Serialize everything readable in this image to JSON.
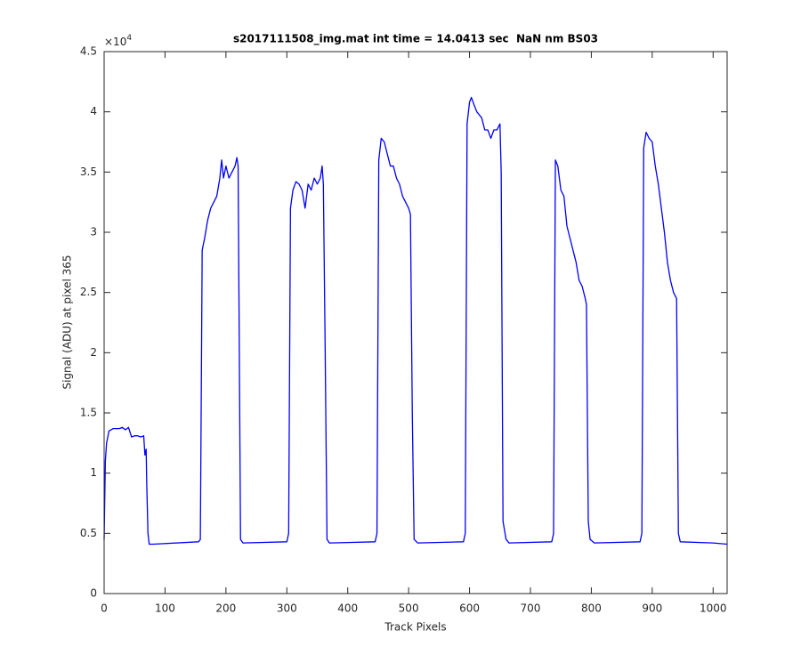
{
  "chart_data": {
    "type": "line",
    "title": "s2017111508_img.mat int time = 14.0413 sec  NaN nm BS03",
    "x_label": "Track Pixels",
    "y_label": "Signal (ADU) at pixel 365",
    "y_multiplier_base": "×10",
    "y_multiplier_exponent": "4",
    "color": "#0000ff",
    "xlim": [
      0,
      1023
    ],
    "xticks": [
      0,
      100,
      200,
      300,
      400,
      500,
      600,
      700,
      800,
      900,
      1000
    ],
    "ylim": [
      0,
      4.5
    ],
    "yticks": [
      0,
      0.5,
      1,
      1.5,
      2,
      2.5,
      3,
      3.5,
      4,
      4.5
    ],
    "x": [
      0,
      2,
      4,
      8,
      15,
      25,
      30,
      35,
      40,
      45,
      50,
      55,
      60,
      65,
      67,
      69,
      70,
      72,
      74,
      80,
      155,
      158,
      161,
      165,
      170,
      175,
      180,
      185,
      190,
      193,
      196,
      200,
      205,
      210,
      215,
      218,
      220,
      222,
      224,
      228,
      300,
      303,
      306,
      310,
      315,
      320,
      325,
      330,
      335,
      340,
      345,
      350,
      355,
      358,
      360,
      363,
      366,
      370,
      445,
      448,
      451,
      455,
      460,
      465,
      470,
      475,
      480,
      485,
      490,
      495,
      500,
      503,
      506,
      509,
      515,
      590,
      593,
      596,
      600,
      603,
      608,
      612,
      620,
      625,
      630,
      635,
      640,
      645,
      650,
      652,
      655,
      660,
      665,
      735,
      738,
      741,
      745,
      750,
      755,
      760,
      765,
      770,
      775,
      780,
      785,
      790,
      792,
      795,
      798,
      805,
      880,
      883,
      886,
      890,
      895,
      900,
      905,
      910,
      915,
      920,
      925,
      930,
      935,
      940,
      943,
      946,
      1000,
      1023
    ],
    "values": [
      0.45,
      1.1,
      1.25,
      1.35,
      1.37,
      1.37,
      1.38,
      1.36,
      1.38,
      1.3,
      1.31,
      1.31,
      1.3,
      1.31,
      1.15,
      1.2,
      0.9,
      0.5,
      0.41,
      0.41,
      0.43,
      0.45,
      2.85,
      2.95,
      3.1,
      3.2,
      3.25,
      3.3,
      3.45,
      3.6,
      3.45,
      3.55,
      3.45,
      3.5,
      3.55,
      3.62,
      3.55,
      2.0,
      0.45,
      0.42,
      0.43,
      0.5,
      3.2,
      3.35,
      3.42,
      3.4,
      3.35,
      3.2,
      3.4,
      3.35,
      3.45,
      3.4,
      3.45,
      3.55,
      3.4,
      2.0,
      0.45,
      0.42,
      0.43,
      0.5,
      3.6,
      3.78,
      3.75,
      3.65,
      3.55,
      3.55,
      3.45,
      3.4,
      3.3,
      3.25,
      3.2,
      3.15,
      1.5,
      0.45,
      0.42,
      0.43,
      0.5,
      3.9,
      4.08,
      4.12,
      4.05,
      4.0,
      3.95,
      3.85,
      3.85,
      3.78,
      3.85,
      3.85,
      3.9,
      3.5,
      0.6,
      0.45,
      0.42,
      0.43,
      0.5,
      3.6,
      3.55,
      3.35,
      3.3,
      3.05,
      2.95,
      2.85,
      2.75,
      2.6,
      2.55,
      2.45,
      2.4,
      0.6,
      0.45,
      0.42,
      0.43,
      0.5,
      3.7,
      3.83,
      3.78,
      3.75,
      3.55,
      3.4,
      3.2,
      3.0,
      2.75,
      2.6,
      2.5,
      2.45,
      0.5,
      0.43,
      0.42,
      0.41
    ]
  }
}
